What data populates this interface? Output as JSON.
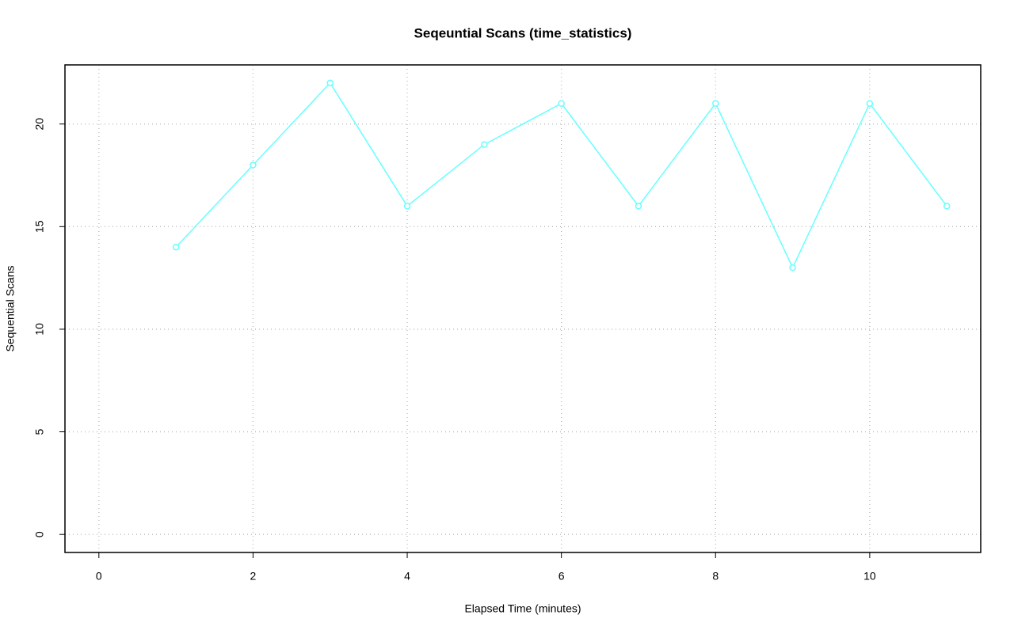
{
  "chart_data": {
    "type": "line",
    "title": "Seqeuntial Scans (time_statistics)",
    "x_label": "Elapsed Time (minutes)",
    "y_label": "Sequential Scans",
    "x": [
      1,
      2,
      3,
      4,
      5,
      6,
      7,
      8,
      9,
      10,
      11
    ],
    "series": [
      {
        "name": "Sequential Scans",
        "color": "#66ffff",
        "values": [
          14,
          18,
          22,
          16,
          19,
          21,
          16,
          21,
          13,
          21,
          16
        ]
      }
    ],
    "xlim": [
      -0.44,
      11.44
    ],
    "xticks": [
      0,
      2,
      4,
      6,
      8,
      10
    ],
    "ylim": [
      -0.88,
      22.88
    ],
    "yticks": [
      0,
      5,
      10,
      15,
      20
    ],
    "grid": true
  }
}
